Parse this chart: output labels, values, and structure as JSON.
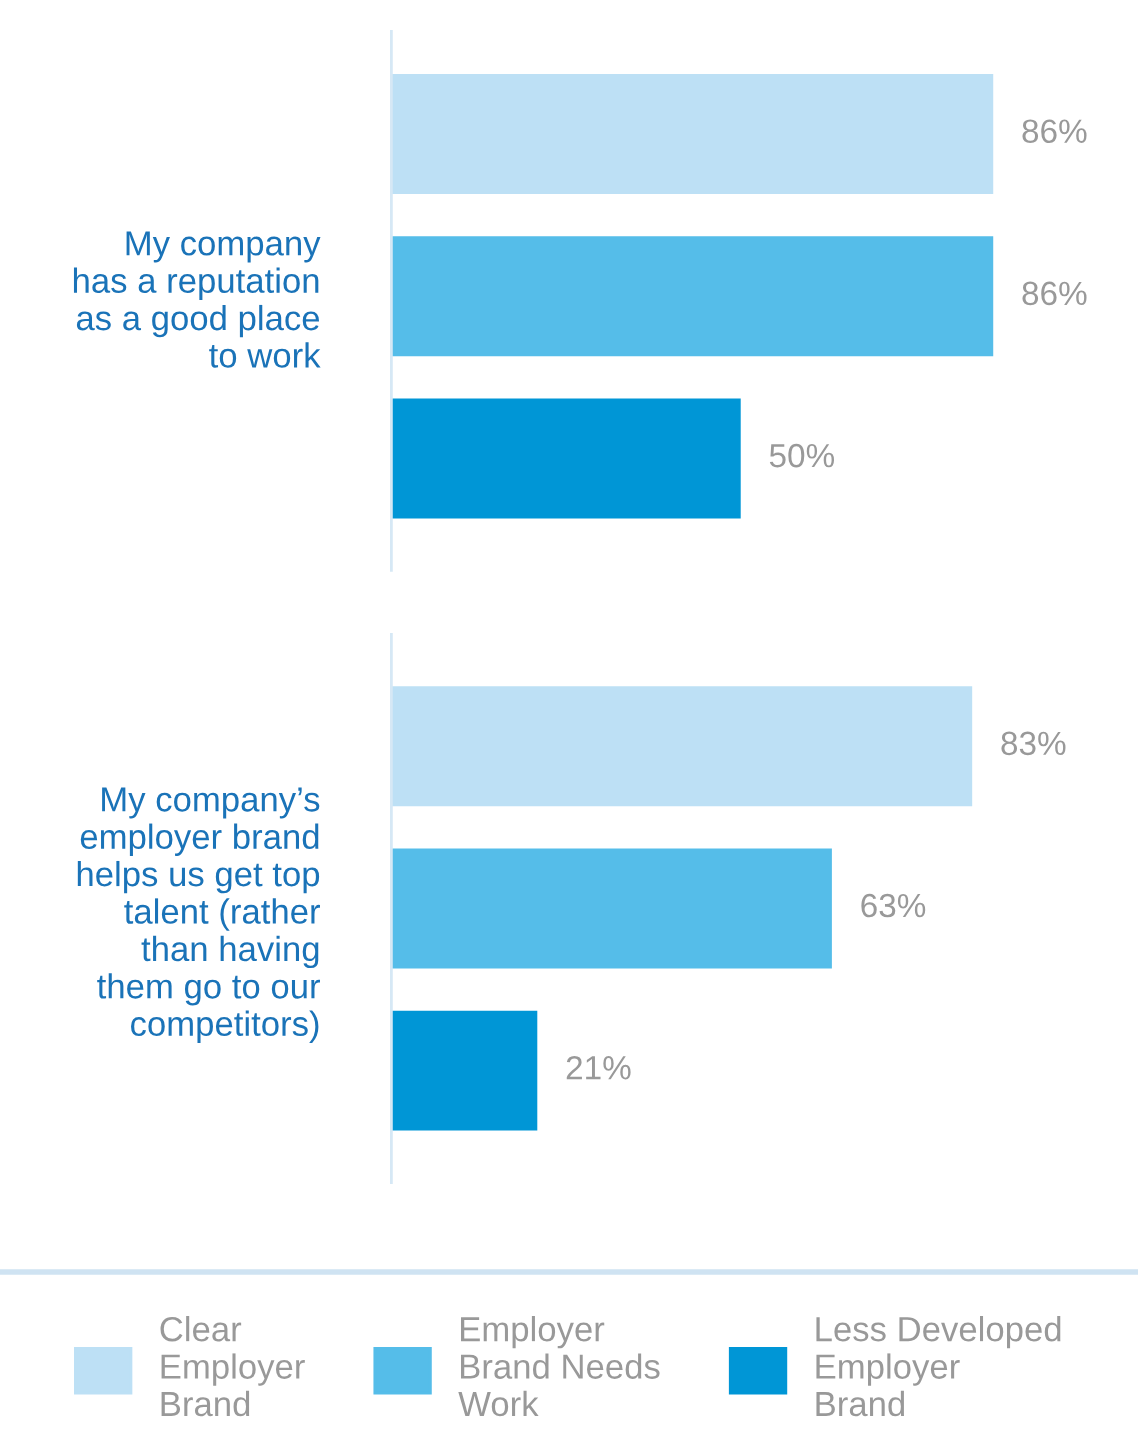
{
  "chart_data": {
    "type": "bar",
    "orientation": "horizontal",
    "categories": [
      "My company\nhas a reputation\nas a good place\nto work",
      "My company’s\nemployer brand\nhelps us get top\ntalent (rather\nthan having\nthem go to our\ncompetitors)"
    ],
    "series": [
      {
        "name": "Clear\nEmployer\nBrand",
        "color": "#bde0f5",
        "values": [
          86,
          83
        ],
        "value_labels": [
          "86%",
          "83%"
        ]
      },
      {
        "name": "Employer\nBrand Needs\nWork",
        "color": "#55bde9",
        "values": [
          86,
          63
        ],
        "value_labels": [
          "86%",
          "63%"
        ]
      },
      {
        "name": "Less Developed\nEmployer\nBrand",
        "color": "#0096d6",
        "values": [
          50,
          21
        ],
        "value_labels": [
          "50%",
          "21%"
        ]
      }
    ],
    "legend": "bottom",
    "grid": false
  }
}
